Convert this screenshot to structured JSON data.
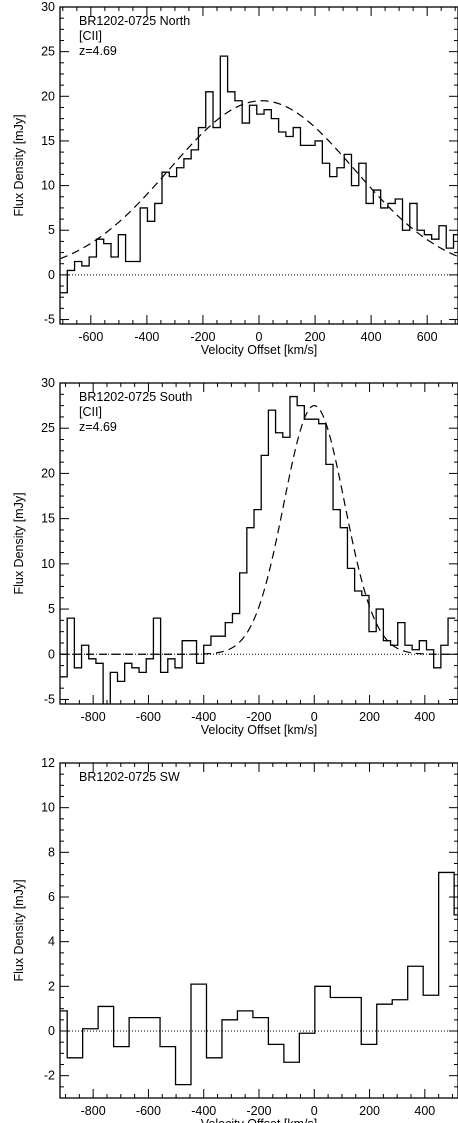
{
  "chart_data": [
    {
      "type": "line",
      "title": "",
      "annotations": [
        "BR1202-0725 North",
        "[CII]",
        "z=4.69"
      ],
      "xlabel": "Velocity Offset [km/s]",
      "ylabel": "Flux Density [mJy]",
      "xlim": [
        -710,
        710
      ],
      "ylim": [
        -5.5,
        30
      ],
      "xticks": [
        -600,
        -400,
        -200,
        0,
        200,
        400,
        600
      ],
      "yticks": [
        -5,
        0,
        5,
        10,
        15,
        20,
        25,
        30
      ],
      "zero_line": true,
      "series": [
        {
          "style": "histogram",
          "bin_width": 26,
          "x": [
            -697,
            -671,
            -645,
            -619,
            -593,
            -567,
            -541,
            -515,
            -489,
            -463,
            -437,
            -411,
            -385,
            -359,
            -333,
            -307,
            -281,
            -255,
            -229,
            -203,
            -177,
            -151,
            -125,
            -99,
            -73,
            -47,
            -21,
            5,
            31,
            57,
            83,
            109,
            135,
            161,
            187,
            213,
            239,
            265,
            291,
            317,
            343,
            369,
            395,
            421,
            447,
            473,
            499,
            525,
            551,
            577,
            603,
            629,
            655,
            681,
            707
          ],
          "values": [
            -2,
            0.5,
            1.5,
            1.0,
            2.0,
            4.0,
            3.5,
            2.0,
            4.5,
            1.5,
            1.5,
            7.5,
            6.0,
            8.0,
            11.5,
            11.0,
            12.0,
            13.0,
            14.0,
            16.5,
            20.5,
            16.5,
            24.5,
            20.5,
            19.5,
            17.0,
            19.0,
            18.0,
            18.5,
            17.5,
            16.0,
            15.5,
            16.5,
            14.5,
            14.5,
            15.0,
            12.5,
            11.0,
            12.0,
            13.5,
            10.0,
            12.5,
            8.0,
            9.5,
            7.5,
            8.0,
            8.5,
            5.0,
            8.0,
            5.0,
            4.5,
            4.0,
            5.5,
            3.0,
            4.5
          ]
        },
        {
          "style": "dashed-fit",
          "fit": {
            "type": "gaussian",
            "amplitude": 19.5,
            "center": 10,
            "sigma": 330
          }
        }
      ]
    },
    {
      "type": "line",
      "title": "",
      "annotations": [
        "BR1202-0725 South",
        "[CII]",
        "z=4.69"
      ],
      "xlabel": "Velocity Offset [km/s]",
      "ylabel": "Flux Density [mJy]",
      "xlim": [
        -920,
        520
      ],
      "ylim": [
        -5.5,
        30
      ],
      "xticks": [
        -800,
        -600,
        -400,
        -200,
        0,
        200,
        400
      ],
      "yticks": [
        -5,
        0,
        5,
        10,
        15,
        20,
        25,
        30
      ],
      "zero_line": true,
      "series": [
        {
          "style": "histogram",
          "bin_width": 26,
          "x": [
            -907,
            -881,
            -855,
            -829,
            -803,
            -777,
            -751,
            -725,
            -699,
            -673,
            -647,
            -621,
            -595,
            -569,
            -543,
            -517,
            -491,
            -465,
            -439,
            -413,
            -387,
            -361,
            -335,
            -309,
            -283,
            -257,
            -231,
            -205,
            -179,
            -153,
            -127,
            -101,
            -75,
            -49,
            -23,
            3,
            29,
            55,
            81,
            107,
            133,
            159,
            185,
            211,
            237,
            263,
            289,
            315,
            341,
            367,
            393,
            419,
            445,
            471,
            497
          ],
          "values": [
            -2.5,
            4.0,
            -1.5,
            1.0,
            -0.5,
            -1.0,
            -6.0,
            -2.0,
            -3.0,
            -1.0,
            -1.5,
            -2.0,
            -0.5,
            4.0,
            -2.0,
            -0.5,
            -1.5,
            1.5,
            1.5,
            -1.0,
            1.0,
            2.0,
            2.0,
            3.5,
            4.5,
            9.0,
            14.0,
            16.0,
            22.0,
            27.0,
            24.5,
            24.0,
            28.5,
            27.5,
            26.0,
            26.0,
            25.5,
            21.0,
            16.0,
            14.0,
            9.5,
            7.0,
            6.5,
            2.5,
            5.0,
            1.5,
            1.0,
            3.5,
            1.0,
            0.5,
            1.5,
            0.5,
            -1.5,
            1.0,
            4.0
          ]
        },
        {
          "style": "dashed-fit",
          "fit": {
            "type": "gaussian",
            "amplitude": 27.5,
            "center": 0,
            "sigma": 110
          }
        }
      ]
    },
    {
      "type": "line",
      "title": "",
      "annotations": [
        "BR1202-0725 SW"
      ],
      "xlabel": "Velocity Offset [km/s]",
      "ylabel": "Flux Density [mJy]",
      "xlim": [
        -920,
        520
      ],
      "ylim": [
        -3,
        12
      ],
      "xticks": [
        -800,
        -600,
        -400,
        -200,
        0,
        200,
        400
      ],
      "yticks": [
        -2,
        0,
        2,
        4,
        6,
        8,
        10,
        12
      ],
      "zero_line": true,
      "series": [
        {
          "style": "histogram",
          "bin_width": 56,
          "x": [
            -922,
            -866,
            -810,
            -754,
            -698,
            -642,
            -586,
            -530,
            -474,
            -418,
            -362,
            -306,
            -250,
            -194,
            -138,
            -82,
            -26,
            30,
            86,
            142,
            198,
            254,
            310,
            366,
            422,
            478,
            534
          ],
          "values": [
            0.9,
            -1.2,
            0.1,
            1.1,
            -0.7,
            0.6,
            0.6,
            -0.7,
            -2.4,
            2.1,
            -1.2,
            0.5,
            0.9,
            0.6,
            -0.6,
            -1.4,
            -0.1,
            2.0,
            1.5,
            1.5,
            -0.6,
            1.2,
            1.4,
            2.9,
            1.6,
            7.1,
            5.2
          ]
        }
      ]
    }
  ]
}
